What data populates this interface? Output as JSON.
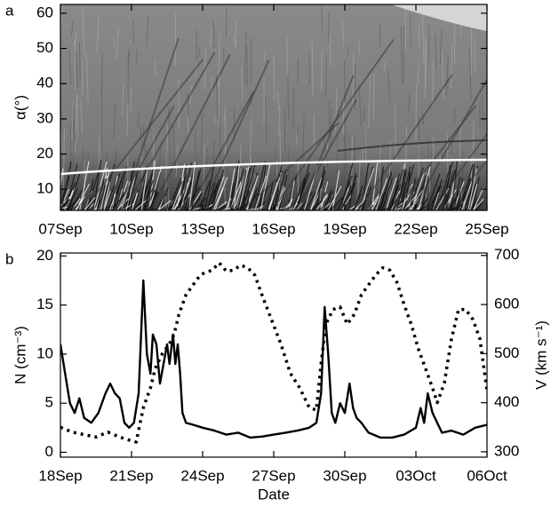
{
  "chart_data": [
    {
      "type": "image",
      "panel_label": "a",
      "ylabel": "α(°)",
      "xlim": [
        250,
        268
      ],
      "xticks": [
        {
          "value": 250,
          "label": "07Sep"
        },
        {
          "value": 253,
          "label": "10Sep"
        },
        {
          "value": 256,
          "label": "13Sep"
        },
        {
          "value": 259,
          "label": "16Sep"
        },
        {
          "value": 262,
          "label": "19Sep"
        },
        {
          "value": 265,
          "label": "22Sep"
        },
        {
          "value": 268,
          "label": "25Sep"
        }
      ],
      "ylim": [
        4,
        62.5
      ],
      "yticks": [
        10,
        20,
        30,
        40,
        50,
        60
      ]
    },
    {
      "type": "line",
      "panel_label": "b",
      "xlabel": "Date",
      "ylabel": "N (cm⁻³)",
      "y2label": "V (km s⁻¹)",
      "xlim": [
        261,
        279
      ],
      "xticks": [
        {
          "value": 261,
          "label": "18Sep"
        },
        {
          "value": 264,
          "label": "21Sep"
        },
        {
          "value": 267,
          "label": "24Sep"
        },
        {
          "value": 270,
          "label": "27Sep"
        },
        {
          "value": 273,
          "label": "30Sep"
        },
        {
          "value": 276,
          "label": "03Oct"
        },
        {
          "value": 279,
          "label": "06Oct"
        }
      ],
      "ylim": [
        -0.5,
        20.3
      ],
      "yticks": [
        0,
        5,
        10,
        15,
        20
      ],
      "y2lim": [
        289,
        705
      ],
      "y2ticks": [
        300,
        400,
        500,
        600,
        700
      ],
      "series": [
        {
          "color": "#000000",
          "style": "solid",
          "x": [
            261.0,
            261.2,
            261.4,
            261.6,
            261.8,
            262.0,
            262.3,
            262.6,
            262.9,
            263.1,
            263.3,
            263.5,
            263.7,
            263.9,
            264.1,
            264.3,
            264.5,
            264.65,
            264.8,
            264.9,
            265.05,
            265.2,
            265.35,
            265.5,
            265.6,
            265.75,
            265.85,
            265.95,
            266.05,
            266.15,
            266.3,
            266.6,
            267.0,
            267.5,
            268.0,
            268.5,
            269.0,
            269.5,
            270.0,
            270.5,
            271.0,
            271.5,
            271.8,
            272.0,
            272.15,
            272.3,
            272.45,
            272.6,
            272.8,
            273.0,
            273.2,
            273.35,
            273.5,
            273.7,
            274.0,
            274.5,
            275.0,
            275.5,
            276.0,
            276.2,
            276.35,
            276.5,
            276.7,
            276.9,
            277.1,
            277.5,
            278.0,
            278.5,
            279.0
          ],
          "values": [
            11,
            8,
            5,
            4,
            5.5,
            3.5,
            3,
            4,
            6,
            7,
            6,
            5.5,
            3,
            2.5,
            3,
            6,
            17.5,
            10,
            8,
            12,
            11,
            7,
            9,
            11,
            9,
            12,
            9,
            11,
            8,
            4,
            3,
            2.8,
            2.5,
            2.2,
            1.8,
            2,
            1.5,
            1.6,
            1.8,
            2,
            2.2,
            2.5,
            3,
            6,
            14.8,
            10,
            4,
            3,
            5,
            4,
            7,
            4.5,
            3.5,
            3,
            2,
            1.5,
            1.5,
            1.8,
            2.5,
            4.5,
            3,
            6,
            4,
            3,
            2,
            2.2,
            1.8,
            2.5,
            2.8
          ]
        },
        {
          "color": "#000000",
          "style": "dotted",
          "axis": "y2",
          "x": [
            261.0,
            261.5,
            262.0,
            262.5,
            263.0,
            263.5,
            263.8,
            264.2,
            264.5,
            264.8,
            265.0,
            265.3,
            265.6,
            265.8,
            266.0,
            266.3,
            266.6,
            266.9,
            267.1,
            267.4,
            267.7,
            268.0,
            268.3,
            268.6,
            268.9,
            269.2,
            269.5,
            269.9,
            270.3,
            270.7,
            271.1,
            271.5,
            271.8,
            272.0,
            272.2,
            272.5,
            272.8,
            273.1,
            273.4,
            273.7,
            274.0,
            274.3,
            274.6,
            274.9,
            275.2,
            275.5,
            275.8,
            276.1,
            276.4,
            276.7,
            276.9,
            277.2,
            277.5,
            277.8,
            278.1,
            278.4,
            278.7,
            279.0
          ],
          "values": [
            350,
            340,
            335,
            330,
            340,
            330,
            325,
            320,
            390,
            430,
            470,
            500,
            520,
            540,
            580,
            620,
            640,
            660,
            665,
            670,
            685,
            668,
            670,
            680,
            675,
            660,
            620,
            570,
            520,
            460,
            430,
            390,
            385,
            480,
            560,
            590,
            595,
            560,
            580,
            620,
            640,
            660,
            675,
            670,
            645,
            600,
            560,
            510,
            470,
            430,
            400,
            440,
            530,
            590,
            590,
            570,
            530,
            425
          ]
        }
      ]
    }
  ]
}
